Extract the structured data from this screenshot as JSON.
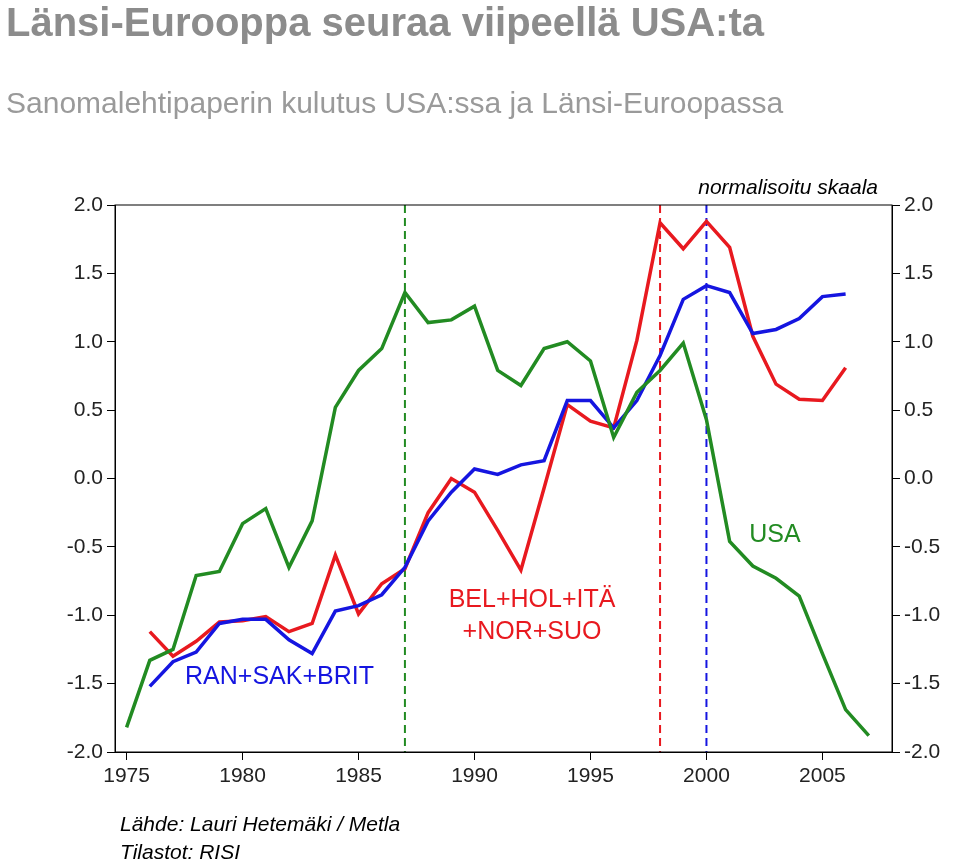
{
  "chart_data": {
    "type": "line",
    "title": "Länsi-Eurooppa seuraa viipeellä USA:ta",
    "subtitle": "Sanomalehtipaperin kulutus USA:ssa ja Länsi-Euroopassa",
    "source": [
      "Lähde: Lauri Hetemäki / Metla",
      "Tilastot: RISI"
    ],
    "x": [
      1975,
      1976,
      1977,
      1978,
      1979,
      1980,
      1981,
      1982,
      1983,
      1984,
      1985,
      1986,
      1987,
      1988,
      1989,
      1990,
      1991,
      1992,
      1993,
      1994,
      1995,
      1996,
      1997,
      1998,
      1999,
      2000,
      2001,
      2002,
      2003,
      2004,
      2005,
      2006,
      2007
    ],
    "series": [
      {
        "name": "USA",
        "color": "#228b22",
        "line_style": "solid",
        "values": [
          -1.82,
          -1.33,
          -1.25,
          -0.71,
          -0.68,
          -0.33,
          -0.22,
          -0.65,
          -0.31,
          0.52,
          0.79,
          0.95,
          1.36,
          1.14,
          1.16,
          1.26,
          0.79,
          0.68,
          0.95,
          1.0,
          0.86,
          0.3,
          0.63,
          0.79,
          0.99,
          0.43,
          -0.46,
          -0.64,
          -0.73,
          -0.86,
          -1.28,
          -1.69,
          -1.88
        ]
      },
      {
        "name": "RAN+SAK+BRIT",
        "color": "#1515e0",
        "line_style": "solid",
        "values": [
          null,
          -1.52,
          -1.34,
          -1.27,
          -1.06,
          -1.03,
          -1.03,
          -1.18,
          -1.28,
          -0.97,
          -0.93,
          -0.85,
          -0.65,
          -0.31,
          -0.1,
          0.07,
          0.03,
          0.1,
          0.13,
          0.57,
          0.57,
          0.37,
          0.57,
          0.9,
          1.31,
          1.41,
          1.36,
          1.06,
          1.09,
          1.17,
          1.33,
          1.35,
          null
        ]
      },
      {
        "name": "BEL+HOL+ITÄ +NOR+SUO",
        "color": "#e8191f",
        "line_style": "solid",
        "values": [
          null,
          -1.12,
          -1.3,
          -1.19,
          -1.05,
          -1.04,
          -1.01,
          -1.12,
          -1.06,
          -0.56,
          -0.99,
          -0.77,
          -0.66,
          -0.25,
          0.0,
          -0.1,
          -0.38,
          -0.67,
          -0.07,
          0.54,
          0.42,
          0.37,
          1.01,
          1.87,
          1.68,
          1.88,
          1.69,
          1.04,
          0.69,
          0.58,
          0.57,
          0.81,
          null
        ]
      }
    ],
    "xlim": [
      1974.5,
      2008
    ],
    "xticks": [
      1975,
      1980,
      1985,
      1990,
      1995,
      2000,
      2005
    ],
    "ylim": [
      -2,
      2
    ],
    "yticks": [
      {
        "value": -2,
        "label": "-2.0"
      },
      -1.5,
      {
        "value": -1,
        "label": "-1.0"
      },
      -0.5,
      {
        "value": 0,
        "label": "0.0"
      },
      0.5,
      {
        "value": 1,
        "label": "1.0"
      },
      1.5,
      {
        "value": 2,
        "label": "2.0"
      }
    ],
    "y2lim": [
      -2,
      2
    ],
    "y2ticks": [
      {
        "value": -2,
        "label": "-2.0"
      },
      -1.5,
      {
        "value": -1,
        "label": "-1.0"
      },
      -0.5,
      {
        "value": 0,
        "label": "0.0"
      },
      0.5,
      {
        "value": 1,
        "label": "1.0"
      },
      1.5,
      {
        "value": 2,
        "label": "2.0"
      }
    ],
    "grid": false,
    "reference_lines": [
      {
        "x": 1987,
        "color": "#228b22",
        "line_style": "dashed"
      },
      {
        "x": 1998,
        "color": "#e8191f",
        "line_style": "dashed"
      },
      {
        "x": 2000,
        "color": "#1515e0",
        "line_style": "dashed"
      }
    ],
    "annotations": [
      {
        "text": "RAN+SAK+BRIT",
        "color": "#1515e0"
      },
      {
        "text": [
          "BEL+HOL+ITÄ",
          "+NOR+SUO"
        ],
        "color": "#e8191f"
      },
      {
        "text": "USA",
        "color": "#228b22"
      },
      {
        "text": "normalisoitu skaala",
        "color": "#000000"
      }
    ]
  }
}
